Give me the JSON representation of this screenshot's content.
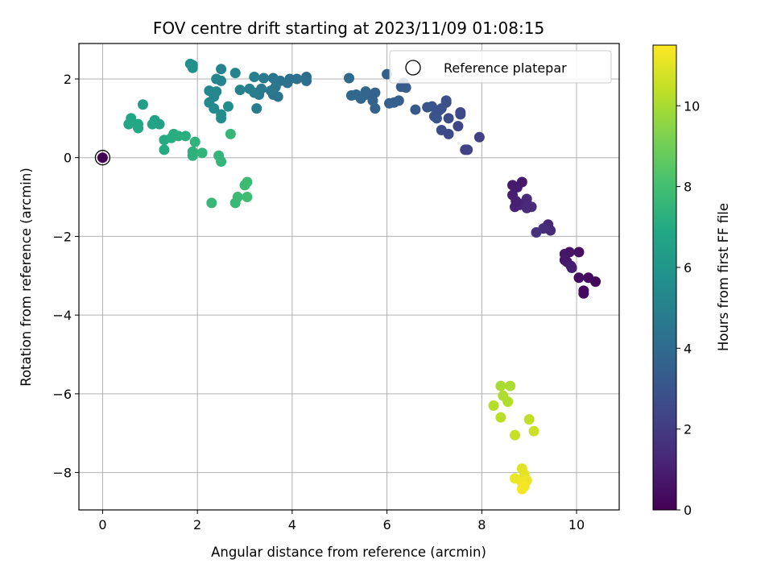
{
  "chart_data": {
    "type": "scatter",
    "title": "FOV centre drift starting at 2023/11/09 01:08:15",
    "xlabel": "Angular distance from reference (arcmin)",
    "ylabel": "Rotation from reference (arcmin)",
    "xlim": [
      -0.5,
      10.9
    ],
    "ylim": [
      -8.95,
      2.9
    ],
    "xticks": [
      0,
      2,
      4,
      6,
      8,
      10
    ],
    "xtick_labels": [
      "0",
      "2",
      "4",
      "6",
      "8",
      "10"
    ],
    "yticks": [
      2,
      0,
      -2,
      -4,
      -6,
      -8
    ],
    "ytick_labels": [
      "2",
      "0",
      "−2",
      "−4",
      "−6",
      "−8"
    ],
    "grid": true,
    "legend": {
      "position": "top-right",
      "entries": [
        "Reference platepar"
      ]
    },
    "colorbar": {
      "label": "Hours from first FF file",
      "colormap": "viridis",
      "range": [
        0,
        11.5
      ],
      "ticks": [
        0,
        2,
        4,
        6,
        8,
        10
      ],
      "tick_labels": [
        "0",
        "2",
        "4",
        "6",
        "8",
        "10"
      ]
    },
    "reference_point": {
      "x": 0,
      "y": 0,
      "color": "#440154"
    },
    "points": [
      {
        "x": 10.4,
        "y": -3.15,
        "t": 0.2
      },
      {
        "x": 10.25,
        "y": -3.05,
        "t": 0.3
      },
      {
        "x": 10.05,
        "y": -3.05,
        "t": 0.4
      },
      {
        "x": 10.15,
        "y": -3.45,
        "t": 0.35
      },
      {
        "x": 10.15,
        "y": -3.38,
        "t": 0.3
      },
      {
        "x": 10.05,
        "y": -2.4,
        "t": 0.5
      },
      {
        "x": 9.85,
        "y": -2.4,
        "t": 0.6
      },
      {
        "x": 9.75,
        "y": -2.45,
        "t": 0.7
      },
      {
        "x": 9.8,
        "y": -2.65,
        "t": 0.8
      },
      {
        "x": 9.75,
        "y": -2.6,
        "t": 0.75
      },
      {
        "x": 9.88,
        "y": -2.75,
        "t": 0.9
      },
      {
        "x": 9.9,
        "y": -2.8,
        "t": 1.0
      },
      {
        "x": 9.4,
        "y": -1.7,
        "t": 1.3
      },
      {
        "x": 9.45,
        "y": -1.85,
        "t": 1.4
      },
      {
        "x": 9.3,
        "y": -1.8,
        "t": 1.5
      },
      {
        "x": 9.15,
        "y": -1.9,
        "t": 1.6
      },
      {
        "x": 9.05,
        "y": -1.25,
        "t": 1.5
      },
      {
        "x": 8.95,
        "y": -1.05,
        "t": 1.4
      },
      {
        "x": 8.9,
        "y": -1.15,
        "t": 1.3
      },
      {
        "x": 8.8,
        "y": -1.2,
        "t": 1.2
      },
      {
        "x": 8.7,
        "y": -1.25,
        "t": 1.1
      },
      {
        "x": 8.65,
        "y": -0.95,
        "t": 1.0
      },
      {
        "x": 8.75,
        "y": -0.75,
        "t": 0.9
      },
      {
        "x": 8.65,
        "y": -0.7,
        "t": 0.85
      },
      {
        "x": 8.85,
        "y": -0.62,
        "t": 0.8
      },
      {
        "x": 8.72,
        "y": -1.1,
        "t": 1.05
      },
      {
        "x": 8.95,
        "y": -1.28,
        "t": 1.35
      },
      {
        "x": 7.95,
        "y": 0.52,
        "t": 2.2
      },
      {
        "x": 7.7,
        "y": 0.2,
        "t": 2.3
      },
      {
        "x": 7.65,
        "y": 0.2,
        "t": 2.25
      },
      {
        "x": 7.5,
        "y": 0.8,
        "t": 2.4
      },
      {
        "x": 7.55,
        "y": 1.1,
        "t": 2.5
      },
      {
        "x": 7.55,
        "y": 1.15,
        "t": 2.45
      },
      {
        "x": 7.3,
        "y": 1.0,
        "t": 2.6
      },
      {
        "x": 7.3,
        "y": 0.6,
        "t": 2.55
      },
      {
        "x": 7.15,
        "y": 0.7,
        "t": 2.65
      },
      {
        "x": 7.25,
        "y": 1.4,
        "t": 2.7
      },
      {
        "x": 7.25,
        "y": 1.45,
        "t": 2.75
      },
      {
        "x": 7.1,
        "y": 1.2,
        "t": 2.8
      },
      {
        "x": 7.0,
        "y": 1.05,
        "t": 2.9
      },
      {
        "x": 6.95,
        "y": 1.3,
        "t": 3.0
      },
      {
        "x": 6.85,
        "y": 1.28,
        "t": 3.05
      },
      {
        "x": 7.05,
        "y": 1.0,
        "t": 2.95
      },
      {
        "x": 7.15,
        "y": 1.25,
        "t": 2.85
      },
      {
        "x": 6.6,
        "y": 1.22,
        "t": 3.2
      },
      {
        "x": 6.3,
        "y": 1.8,
        "t": 3.3
      },
      {
        "x": 6.4,
        "y": 1.78,
        "t": 3.35
      },
      {
        "x": 6.25,
        "y": 1.45,
        "t": 3.4
      },
      {
        "x": 6.15,
        "y": 1.4,
        "t": 3.45
      },
      {
        "x": 6.05,
        "y": 1.38,
        "t": 3.5
      },
      {
        "x": 6.0,
        "y": 2.12,
        "t": 3.4
      },
      {
        "x": 6.35,
        "y": 1.9,
        "t": 3.25
      },
      {
        "x": 5.75,
        "y": 1.65,
        "t": 3.55
      },
      {
        "x": 5.75,
        "y": 1.25,
        "t": 3.6
      },
      {
        "x": 5.7,
        "y": 1.45,
        "t": 3.65
      },
      {
        "x": 5.55,
        "y": 1.6,
        "t": 3.7
      },
      {
        "x": 5.55,
        "y": 1.68,
        "t": 3.75
      },
      {
        "x": 5.45,
        "y": 1.5,
        "t": 3.8
      },
      {
        "x": 5.35,
        "y": 1.6,
        "t": 3.85
      },
      {
        "x": 5.25,
        "y": 1.58,
        "t": 3.9
      },
      {
        "x": 5.2,
        "y": 2.02,
        "t": 3.95
      },
      {
        "x": 4.3,
        "y": 2.05,
        "t": 4.1
      },
      {
        "x": 4.3,
        "y": 1.95,
        "t": 4.15
      },
      {
        "x": 4.1,
        "y": 2.0,
        "t": 4.2
      },
      {
        "x": 3.95,
        "y": 2.0,
        "t": 4.25
      },
      {
        "x": 3.9,
        "y": 1.9,
        "t": 4.3
      },
      {
        "x": 3.75,
        "y": 1.95,
        "t": 4.35
      },
      {
        "x": 3.7,
        "y": 1.55,
        "t": 4.4
      },
      {
        "x": 3.6,
        "y": 1.6,
        "t": 4.45
      },
      {
        "x": 3.6,
        "y": 2.02,
        "t": 4.5
      },
      {
        "x": 3.55,
        "y": 1.7,
        "t": 4.55
      },
      {
        "x": 3.65,
        "y": 1.8,
        "t": 4.6
      },
      {
        "x": 3.4,
        "y": 2.02,
        "t": 4.65
      },
      {
        "x": 3.35,
        "y": 1.75,
        "t": 4.7
      },
      {
        "x": 3.3,
        "y": 1.6,
        "t": 4.75
      },
      {
        "x": 3.25,
        "y": 1.25,
        "t": 4.8
      },
      {
        "x": 3.2,
        "y": 1.65,
        "t": 4.85
      },
      {
        "x": 3.2,
        "y": 2.05,
        "t": 4.9
      },
      {
        "x": 3.1,
        "y": 1.75,
        "t": 4.95
      },
      {
        "x": 2.9,
        "y": 1.72,
        "t": 5.0
      },
      {
        "x": 2.8,
        "y": 2.15,
        "t": 5.05
      },
      {
        "x": 2.5,
        "y": 2.25,
        "t": 5.1
      },
      {
        "x": 2.4,
        "y": 2.0,
        "t": 5.15
      },
      {
        "x": 2.5,
        "y": 1.95,
        "t": 5.2
      },
      {
        "x": 2.25,
        "y": 1.7,
        "t": 5.25
      },
      {
        "x": 2.35,
        "y": 1.55,
        "t": 5.3
      },
      {
        "x": 2.4,
        "y": 1.68,
        "t": 5.35
      },
      {
        "x": 2.25,
        "y": 1.4,
        "t": 5.4
      },
      {
        "x": 2.35,
        "y": 1.25,
        "t": 5.45
      },
      {
        "x": 2.5,
        "y": 1.0,
        "t": 5.5
      },
      {
        "x": 2.5,
        "y": 1.1,
        "t": 5.55
      },
      {
        "x": 2.65,
        "y": 1.3,
        "t": 5.6
      },
      {
        "x": 1.85,
        "y": 2.38,
        "t": 5.65
      },
      {
        "x": 1.9,
        "y": 2.35,
        "t": 5.7
      },
      {
        "x": 1.9,
        "y": 2.28,
        "t": 5.75
      },
      {
        "x": 0.85,
        "y": 1.35,
        "t": 6.5
      },
      {
        "x": 1.1,
        "y": 0.95,
        "t": 6.6
      },
      {
        "x": 1.2,
        "y": 0.85,
        "t": 6.65
      },
      {
        "x": 1.05,
        "y": 0.85,
        "t": 6.7
      },
      {
        "x": 0.6,
        "y": 1.0,
        "t": 6.75
      },
      {
        "x": 0.55,
        "y": 0.85,
        "t": 6.8
      },
      {
        "x": 0.75,
        "y": 0.85,
        "t": 6.85
      },
      {
        "x": 0.75,
        "y": 0.75,
        "t": 6.9
      },
      {
        "x": 1.3,
        "y": 0.45,
        "t": 7.0
      },
      {
        "x": 1.3,
        "y": 0.2,
        "t": 7.05
      },
      {
        "x": 1.45,
        "y": 0.5,
        "t": 7.1
      },
      {
        "x": 1.5,
        "y": 0.6,
        "t": 7.15
      },
      {
        "x": 1.6,
        "y": 0.55,
        "t": 7.2
      },
      {
        "x": 1.75,
        "y": 0.55,
        "t": 7.25
      },
      {
        "x": 1.9,
        "y": 0.15,
        "t": 7.3
      },
      {
        "x": 1.9,
        "y": 0.05,
        "t": 7.35
      },
      {
        "x": 1.95,
        "y": 0.4,
        "t": 7.4
      },
      {
        "x": 2.1,
        "y": 0.12,
        "t": 7.45
      },
      {
        "x": 2.45,
        "y": 0.05,
        "t": 7.5
      },
      {
        "x": 2.5,
        "y": -0.1,
        "t": 7.55
      },
      {
        "x": 2.7,
        "y": 0.6,
        "t": 7.6
      },
      {
        "x": 2.3,
        "y": -1.15,
        "t": 7.65
      },
      {
        "x": 2.8,
        "y": -1.15,
        "t": 7.7
      },
      {
        "x": 2.85,
        "y": -1.0,
        "t": 7.75
      },
      {
        "x": 3.0,
        "y": -0.7,
        "t": 7.8
      },
      {
        "x": 3.05,
        "y": -0.62,
        "t": 7.85
      },
      {
        "x": 3.05,
        "y": -1.0,
        "t": 7.9
      },
      {
        "x": 8.4,
        "y": -5.8,
        "t": 10.0
      },
      {
        "x": 8.6,
        "y": -5.8,
        "t": 10.05
      },
      {
        "x": 8.45,
        "y": -6.05,
        "t": 10.1
      },
      {
        "x": 8.55,
        "y": -6.2,
        "t": 10.15
      },
      {
        "x": 8.25,
        "y": -6.3,
        "t": 10.2
      },
      {
        "x": 8.4,
        "y": -6.6,
        "t": 10.3
      },
      {
        "x": 9.0,
        "y": -6.65,
        "t": 10.4
      },
      {
        "x": 8.7,
        "y": -7.05,
        "t": 10.5
      },
      {
        "x": 9.1,
        "y": -6.95,
        "t": 10.6
      },
      {
        "x": 8.85,
        "y": -7.9,
        "t": 11.0
      },
      {
        "x": 8.9,
        "y": -8.05,
        "t": 11.1
      },
      {
        "x": 8.7,
        "y": -8.15,
        "t": 11.15
      },
      {
        "x": 8.95,
        "y": -8.2,
        "t": 11.2
      },
      {
        "x": 8.85,
        "y": -8.25,
        "t": 11.25
      },
      {
        "x": 8.9,
        "y": -8.35,
        "t": 11.3
      },
      {
        "x": 8.85,
        "y": -8.42,
        "t": 11.35
      }
    ]
  }
}
